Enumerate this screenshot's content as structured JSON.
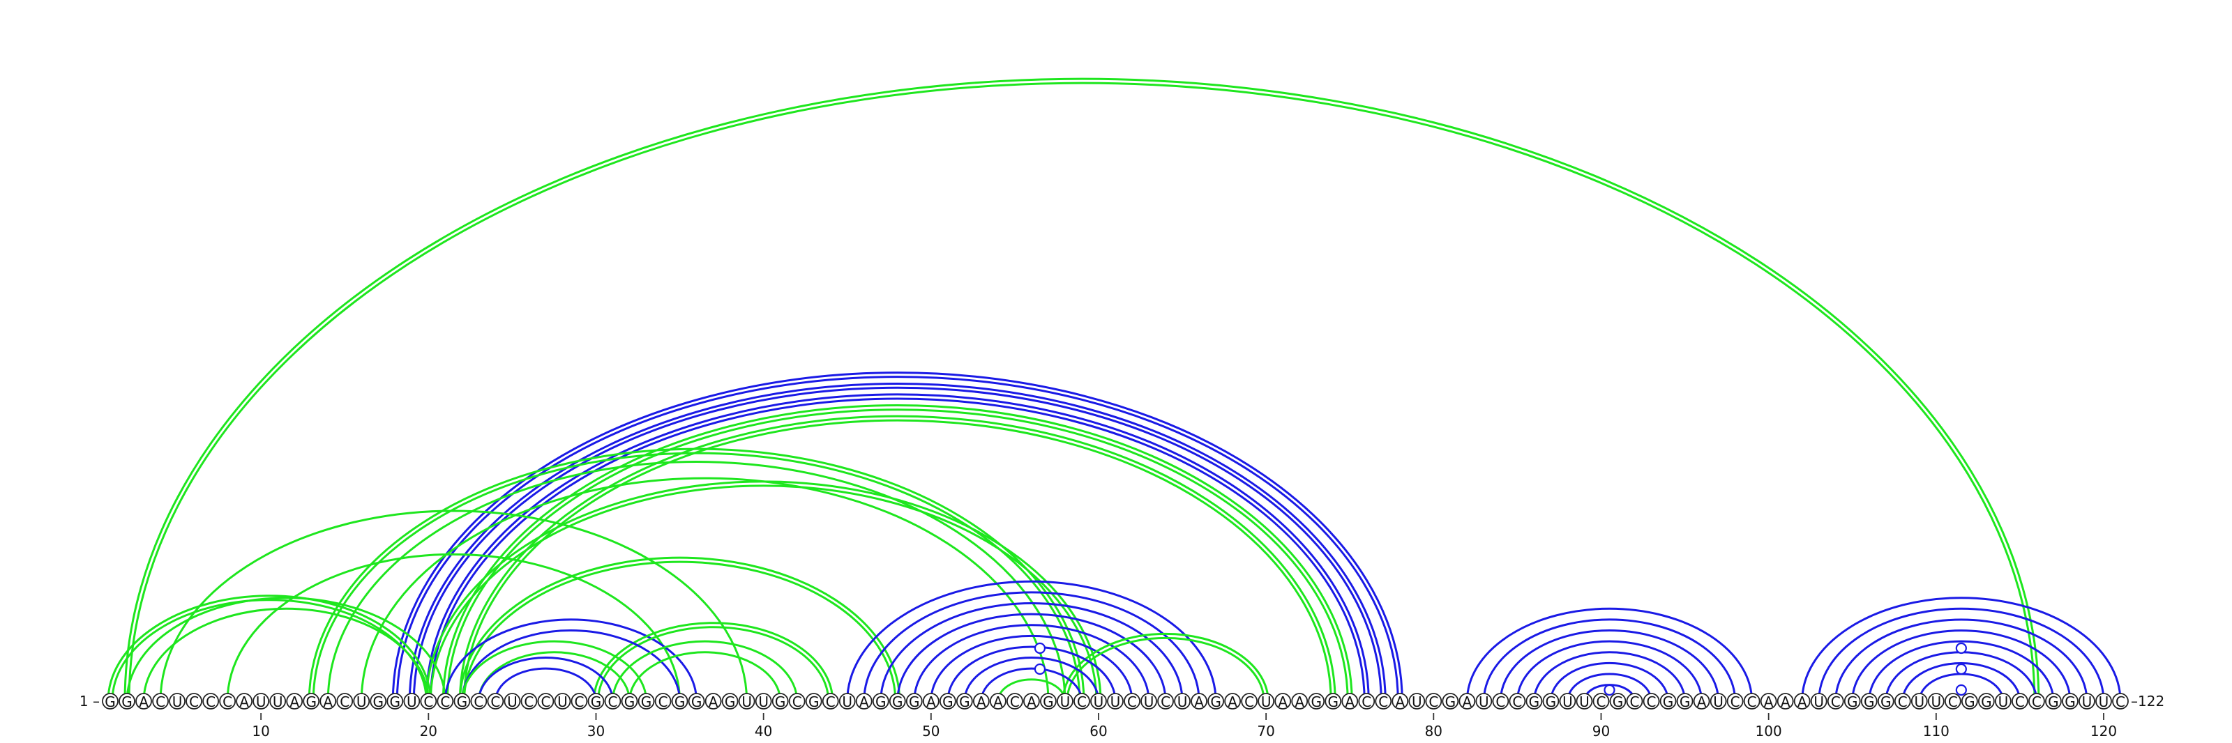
{
  "sequence": "GGACUCCCAUUAGACUGGUCCGCCUCCUCGCGGCGGAGUUGCGCUAGGGAGGAACAGUCUUCUCUAGACUAAGGACCAUCGAUCCGGUUCGCCGGAUCCAAAUCGGGCUUCGGUCCGGUUC",
  "start_label": "1 –",
  "end_label": "–122",
  "ticks": [
    10,
    20,
    30,
    40,
    50,
    60,
    70,
    80,
    90,
    100,
    110,
    120
  ],
  "colors": {
    "blue": "#1a1ae6",
    "green": "#1ee61e"
  },
  "arcs": [
    {
      "i": 2,
      "j": 116,
      "color": "green",
      "double": true
    },
    {
      "i": 18,
      "j": 78,
      "color": "blue",
      "double": true
    },
    {
      "i": 19,
      "j": 77,
      "color": "blue",
      "double": true
    },
    {
      "i": 20,
      "j": 76,
      "color": "blue",
      "double": true
    },
    {
      "i": 21,
      "j": 75,
      "color": "green",
      "double": true
    },
    {
      "i": 22,
      "j": 74,
      "color": "green",
      "double": true
    },
    {
      "i": 13,
      "j": 59,
      "color": "green",
      "double": true
    },
    {
      "i": 14,
      "j": 58,
      "color": "green",
      "double": false
    },
    {
      "i": 16,
      "j": 57,
      "color": "green",
      "double": false
    },
    {
      "i": 20,
      "j": 60,
      "color": "green",
      "double": true
    },
    {
      "i": 22,
      "j": 48,
      "color": "green",
      "double": true
    },
    {
      "i": 4,
      "j": 39,
      "color": "green",
      "double": false
    },
    {
      "i": 8,
      "j": 35,
      "color": "green",
      "double": false
    },
    {
      "i": 1,
      "j": 20,
      "color": "green",
      "double": true
    },
    {
      "i": 2,
      "j": 21,
      "color": "green",
      "double": false
    },
    {
      "i": 3,
      "j": 20,
      "color": "green",
      "double": false
    },
    {
      "i": 21,
      "j": 36,
      "color": "blue",
      "double": false
    },
    {
      "i": 22,
      "j": 35,
      "color": "blue",
      "double": false
    },
    {
      "i": 23,
      "j": 31,
      "color": "blue",
      "double": false
    },
    {
      "i": 24,
      "j": 30,
      "color": "blue",
      "double": false
    },
    {
      "i": 22,
      "j": 33,
      "color": "green",
      "double": false
    },
    {
      "i": 23,
      "j": 32,
      "color": "green",
      "double": false
    },
    {
      "i": 30,
      "j": 44,
      "color": "green",
      "double": true
    },
    {
      "i": 31,
      "j": 42,
      "color": "green",
      "double": false
    },
    {
      "i": 32,
      "j": 41,
      "color": "green",
      "double": false
    },
    {
      "i": 45,
      "j": 67,
      "color": "blue",
      "double": false
    },
    {
      "i": 46,
      "j": 66,
      "color": "blue",
      "double": false
    },
    {
      "i": 47,
      "j": 65,
      "color": "blue",
      "double": false
    },
    {
      "i": 48,
      "j": 64,
      "color": "blue",
      "double": false
    },
    {
      "i": 49,
      "j": 63,
      "color": "blue",
      "double": false
    },
    {
      "i": 50,
      "j": 62,
      "color": "blue",
      "double": false
    },
    {
      "i": 51,
      "j": 61,
      "color": "blue",
      "double": false
    },
    {
      "i": 52,
      "j": 60,
      "color": "blue",
      "double": false
    },
    {
      "i": 53,
      "j": 59,
      "color": "blue",
      "double": false
    },
    {
      "i": 58,
      "j": 70,
      "color": "green",
      "double": true
    },
    {
      "i": 54,
      "j": 58,
      "color": "green",
      "double": false
    },
    {
      "i": 82,
      "j": 99,
      "color": "blue",
      "double": false
    },
    {
      "i": 83,
      "j": 98,
      "color": "blue",
      "double": false
    },
    {
      "i": 84,
      "j": 97,
      "color": "blue",
      "double": false
    },
    {
      "i": 85,
      "j": 96,
      "color": "blue",
      "double": false
    },
    {
      "i": 86,
      "j": 95,
      "color": "blue",
      "double": false
    },
    {
      "i": 87,
      "j": 94,
      "color": "blue",
      "double": false
    },
    {
      "i": 88,
      "j": 93,
      "color": "blue",
      "double": false
    },
    {
      "i": 89,
      "j": 92,
      "color": "blue",
      "double": false
    },
    {
      "i": 102,
      "j": 121,
      "color": "blue",
      "double": false
    },
    {
      "i": 103,
      "j": 120,
      "color": "blue",
      "double": false
    },
    {
      "i": 104,
      "j": 119,
      "color": "blue",
      "double": false
    },
    {
      "i": 105,
      "j": 118,
      "color": "blue",
      "double": false
    },
    {
      "i": 106,
      "j": 117,
      "color": "blue",
      "double": false
    },
    {
      "i": 107,
      "j": 116,
      "color": "blue",
      "double": false
    },
    {
      "i": 108,
      "j": 115,
      "color": "blue",
      "double": false
    },
    {
      "i": 109,
      "j": 114,
      "color": "blue",
      "double": false
    }
  ],
  "markers": [
    {
      "pos": 56.5,
      "level": 1,
      "color": "blue"
    },
    {
      "pos": 56.5,
      "level": 2,
      "color": "blue"
    },
    {
      "pos": 90.5,
      "level": 0,
      "color": "blue"
    },
    {
      "pos": 111.5,
      "level": 0,
      "color": "blue"
    },
    {
      "pos": 111.5,
      "level": 1,
      "color": "blue"
    },
    {
      "pos": 111.5,
      "level": 2,
      "color": "blue"
    }
  ]
}
